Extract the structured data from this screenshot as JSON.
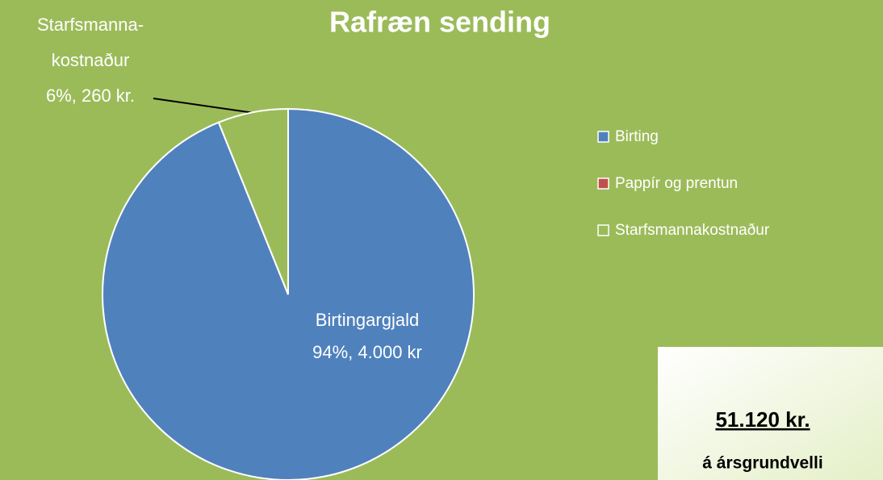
{
  "chart_data": {
    "type": "pie",
    "title": "Rafræn sending",
    "categories": [
      "Birting",
      "Pappír og prentun",
      "Starfsmannakostnaður"
    ],
    "values": [
      4000,
      0,
      260
    ],
    "value_labels": [
      [
        "Birtingargjald",
        "94%, 4.000 kr"
      ],
      null,
      [
        "Starfsmanna-",
        "kostnaður",
        "6%, 260 kr."
      ]
    ],
    "colors": [
      "#4f81bd",
      "#c0504d",
      "#9bbb59"
    ],
    "legend": "right",
    "annotation": [
      "51.120 kr.",
      "á ársgrundvelli"
    ]
  }
}
